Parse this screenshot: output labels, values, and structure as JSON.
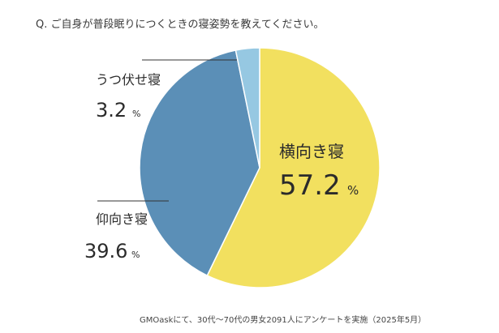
{
  "question": "Q. ご自身が普段眠りにつくときの寝姿勢を教えてください。",
  "footnote": "GMOaskにて、30代〜70代の男女2091人にアンケートを実施（2025年5月）",
  "chart_data": {
    "type": "pie",
    "title": "",
    "unit": "%",
    "slices": [
      {
        "label": "横向き寝",
        "value": 57.2,
        "display": "57.2",
        "color": "#f2e05f"
      },
      {
        "label": "仰向き寝",
        "value": 39.6,
        "display": "39.6",
        "color": "#5b8fb7"
      },
      {
        "label": "うつ伏せ寝",
        "value": 3.2,
        "display": "3.2",
        "color": "#96c8e2"
      }
    ]
  }
}
